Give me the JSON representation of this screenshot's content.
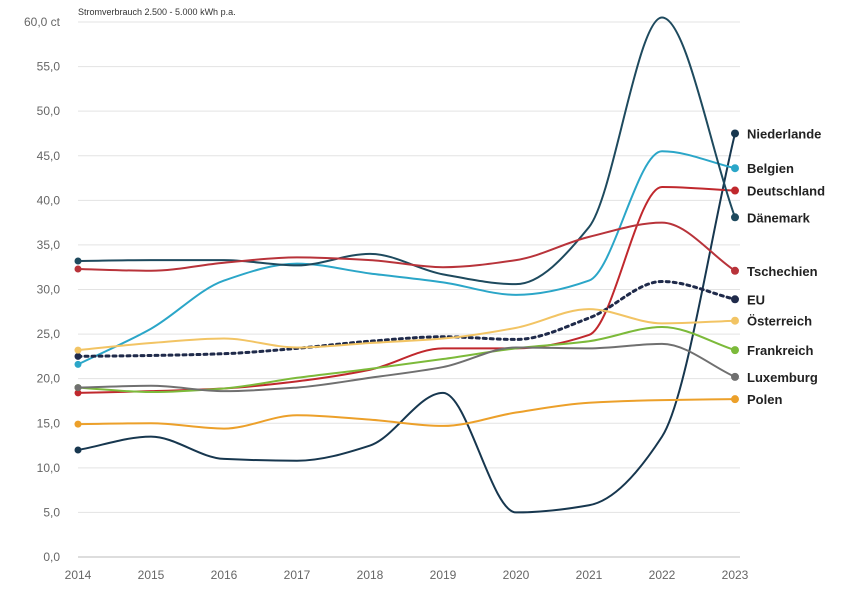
{
  "chart_data": {
    "type": "line",
    "subtitle": "Stromverbrauch 2.500 - 5.000 kWh p.a.",
    "x": [
      "2014",
      "2015",
      "2016",
      "2017",
      "2018",
      "2019",
      "2020",
      "2021",
      "2022",
      "2023"
    ],
    "ylim": [
      0,
      60
    ],
    "y_ticks": [
      "0,0",
      "5,0",
      "10,0",
      "15,0",
      "20,0",
      "25,0",
      "30,0",
      "35,0",
      "40,0",
      "45,0",
      "50,0",
      "55,0",
      "60,0 ct"
    ],
    "grid": true,
    "legend": "end-of-line labels",
    "series": [
      {
        "name": "Niederlande",
        "color": "#17374f",
        "dashed": false,
        "values": [
          12.0,
          13.5,
          11.0,
          10.8,
          12.5,
          18.4,
          5.0,
          5.8,
          13.5,
          47.5
        ]
      },
      {
        "name": "Belgien",
        "color": "#2ba6c8",
        "dashed": false,
        "values": [
          21.6,
          25.6,
          31.0,
          32.9,
          31.8,
          30.8,
          29.4,
          31.0,
          45.5,
          43.6
        ]
      },
      {
        "name": "Deutschland",
        "color": "#c0282d",
        "dashed": false,
        "values": [
          18.4,
          18.6,
          18.9,
          19.7,
          21.0,
          23.4,
          23.4,
          24.9,
          41.5,
          41.1
        ]
      },
      {
        "name": "Dänemark",
        "color": "#1e4a5e",
        "dashed": false,
        "values": [
          33.2,
          33.3,
          33.3,
          32.7,
          34.0,
          31.7,
          30.6,
          37.0,
          60.5,
          38.1
        ]
      },
      {
        "name": "Tschechien",
        "color": "#b8333a",
        "dashed": false,
        "values": [
          32.3,
          32.1,
          33.0,
          33.6,
          33.3,
          32.5,
          33.3,
          35.9,
          37.5,
          32.1
        ]
      },
      {
        "name": "EU",
        "color": "#1f2a4a",
        "dashed": true,
        "values": [
          22.5,
          22.6,
          22.8,
          23.4,
          24.2,
          24.7,
          24.4,
          26.8,
          30.9,
          28.9
        ]
      },
      {
        "name": "Österreich",
        "color": "#f2c464",
        "dashed": false,
        "values": [
          23.2,
          24.0,
          24.5,
          23.5,
          24.0,
          24.5,
          25.7,
          27.8,
          26.2,
          26.5
        ]
      },
      {
        "name": "Frankreich",
        "color": "#7cba3a",
        "dashed": false,
        "values": [
          19.0,
          18.5,
          18.9,
          20.1,
          21.1,
          22.2,
          23.4,
          24.2,
          25.8,
          23.2
        ]
      },
      {
        "name": "Luxemburg",
        "color": "#707070",
        "dashed": false,
        "values": [
          19.0,
          19.2,
          18.6,
          19.0,
          20.1,
          21.3,
          23.5,
          23.4,
          23.9,
          20.2
        ]
      },
      {
        "name": "Polen",
        "color": "#eca02a",
        "dashed": false,
        "values": [
          14.9,
          15.0,
          14.4,
          15.9,
          15.4,
          14.7,
          16.2,
          17.3,
          17.6,
          17.7
        ]
      }
    ]
  }
}
